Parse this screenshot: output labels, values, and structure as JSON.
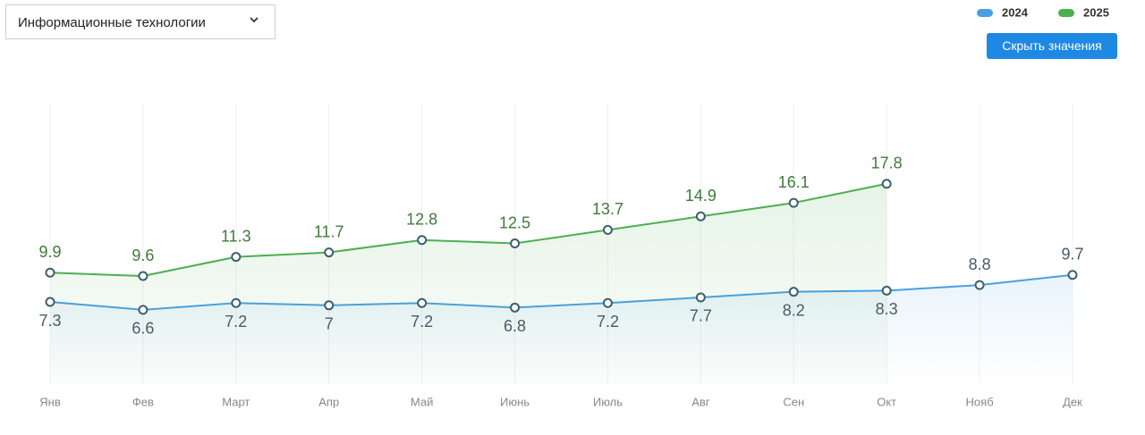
{
  "selector": {
    "value": "Информационные технологии"
  },
  "button": {
    "label": "Скрыть значения"
  },
  "chart_data": {
    "type": "line",
    "categories": [
      "Янв",
      "Фев",
      "Март",
      "Апр",
      "Май",
      "Июнь",
      "Июль",
      "Авг",
      "Сен",
      "Окт",
      "Нояб",
      "Дек"
    ],
    "series": [
      {
        "name": "2024",
        "color": "#4a9fe3",
        "values": [
          7.3,
          6.6,
          7.2,
          7,
          7.2,
          6.8,
          7.2,
          7.7,
          8.2,
          8.3,
          8.8,
          9.7
        ]
      },
      {
        "name": "2025",
        "color": "#4caf50",
        "values": [
          9.9,
          9.6,
          11.3,
          11.7,
          12.8,
          12.5,
          13.7,
          14.9,
          16.1,
          17.8,
          null,
          null
        ]
      }
    ],
    "ylim": [
      0,
      25
    ],
    "grid": true,
    "legend": "top-right",
    "area": true
  }
}
